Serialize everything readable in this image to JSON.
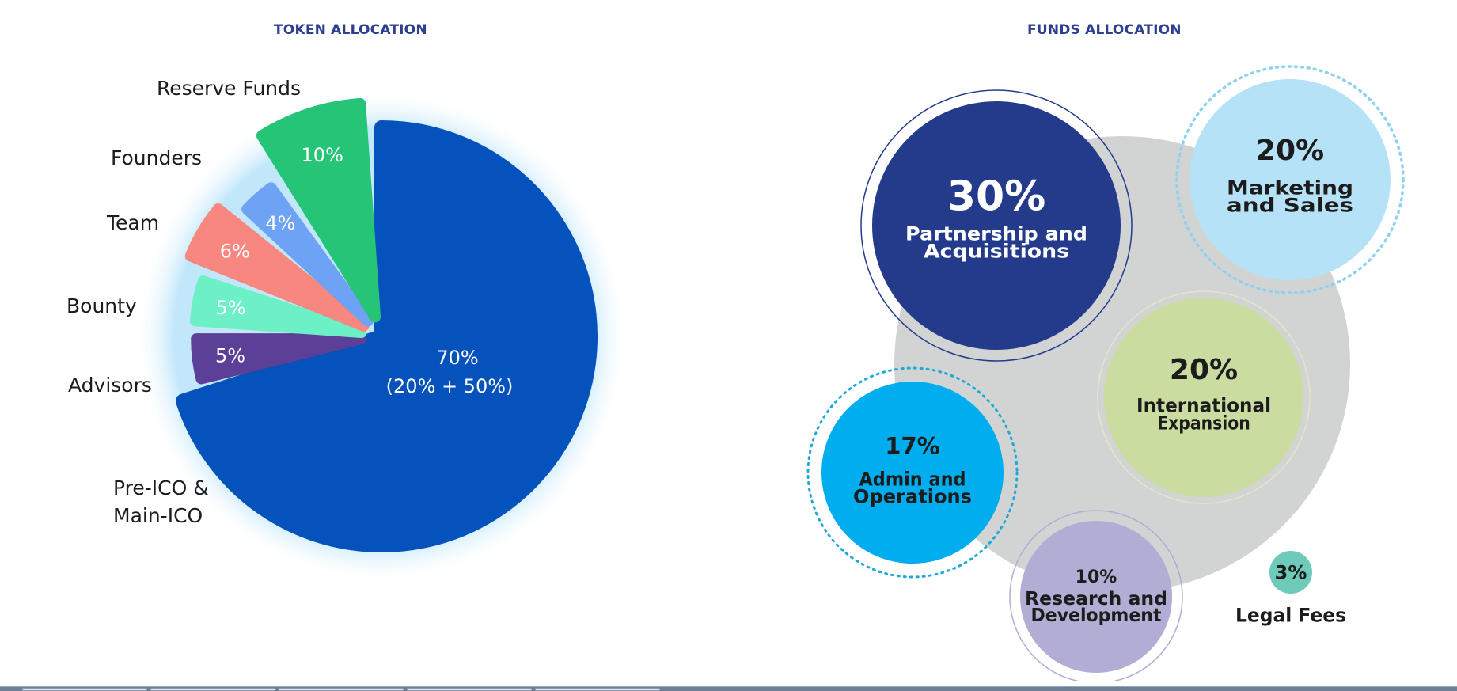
{
  "token_title": "TOKEN ALLOCATION",
  "funds_title": "FUNDS ALLOCATION",
  "chart_data": [
    {
      "type": "pie",
      "title": "TOKEN ALLOCATION",
      "slices": [
        {
          "label": "Pre-ICO & Main-ICO",
          "value": 70,
          "display": "70%",
          "display2": "(20% + 50%)",
          "color": "#0652bd"
        },
        {
          "label": "Advisors",
          "value": 5,
          "display": "5%",
          "color": "#5c3f96"
        },
        {
          "label": "Bounty",
          "value": 5,
          "display": "5%",
          "color": "#6ef0c6"
        },
        {
          "label": "Team",
          "value": 6,
          "display": "6%",
          "color": "#f7877f"
        },
        {
          "label": "Founders",
          "value": 4,
          "display": "4%",
          "color": "#6ea2f5"
        },
        {
          "label": "Reserve Funds",
          "value": 10,
          "display": "10%",
          "color": "#25c477"
        }
      ]
    },
    {
      "type": "bubble",
      "title": "FUNDS ALLOCATION",
      "items": [
        {
          "label": "Partnership and Acquisitions",
          "value": 30,
          "display": "30%",
          "color": "#243b8c",
          "text_color": "#ffffff"
        },
        {
          "label": "Marketing and Sales",
          "value": 20,
          "display": "20%",
          "color": "#b6e2f7",
          "text_color": "#1c1c1c"
        },
        {
          "label": "International Expansion",
          "value": 20,
          "display": "20%",
          "color": "#cadca0",
          "text_color": "#1c1c1c"
        },
        {
          "label": "Admin and Operations",
          "value": 17,
          "display": "17%",
          "color": "#00adee",
          "text_color": "#1c1c1c"
        },
        {
          "label": "Research and Development",
          "value": 10,
          "display": "10%",
          "color": "#b1add5",
          "text_color": "#1c1c1c"
        },
        {
          "label": "Legal Fees",
          "value": 3,
          "display": "3%",
          "color": "#6fcab9",
          "text_color": "#1c1c1c"
        }
      ]
    }
  ],
  "colors": {
    "title": "#2e3f8f",
    "background_circle": "#d2d3d3",
    "glow": "#bfe6fb"
  }
}
